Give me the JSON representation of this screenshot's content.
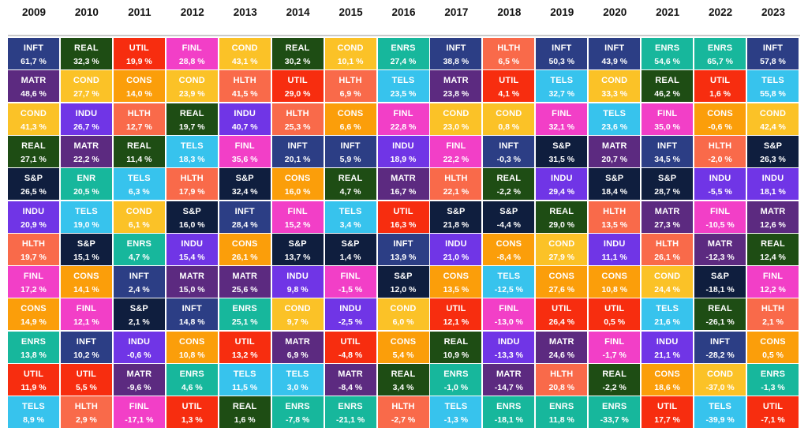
{
  "colors": {
    "INFT": "#2c3e85",
    "REAL": "#1e4d14",
    "UTIL": "#f72d0f",
    "FINL": "#f23fc7",
    "COND": "#fbc227",
    "ENRS": "#17b79c",
    "HLTH": "#f96a4a",
    "TELS": "#37c3ed",
    "MATR": "#5c2a80",
    "CONS": "#fb9e0a",
    "INDU": "#7035e6",
    "S&P": "#0f1e3e",
    "ENR": "#17b79c"
  },
  "chart_data": {
    "type": "table",
    "title": "",
    "years": [
      "2009",
      "2010",
      "2011",
      "2012",
      "2013",
      "2014",
      "2015",
      "2016",
      "2017",
      "2018",
      "2019",
      "2020",
      "2021",
      "2022",
      "2023"
    ],
    "columns": [
      {
        "year": "2009",
        "rows": [
          {
            "sector": "INFT",
            "value": "61,7 %"
          },
          {
            "sector": "MATR",
            "value": "48,6 %"
          },
          {
            "sector": "COND",
            "value": "41,3 %"
          },
          {
            "sector": "REAL",
            "value": "27,1 %"
          },
          {
            "sector": "S&P",
            "value": "26,5 %"
          },
          {
            "sector": "INDU",
            "value": "20,9 %"
          },
          {
            "sector": "HLTH",
            "value": "19,7 %"
          },
          {
            "sector": "FINL",
            "value": "17,2 %"
          },
          {
            "sector": "CONS",
            "value": "14,9 %"
          },
          {
            "sector": "ENRS",
            "value": "13,8 %"
          },
          {
            "sector": "UTIL",
            "value": "11,9 %"
          },
          {
            "sector": "TELS",
            "value": "8,9 %"
          }
        ]
      },
      {
        "year": "2010",
        "rows": [
          {
            "sector": "REAL",
            "value": "32,3 %"
          },
          {
            "sector": "COND",
            "value": "27,7 %"
          },
          {
            "sector": "INDU",
            "value": "26,7 %"
          },
          {
            "sector": "MATR",
            "value": "22,2 %"
          },
          {
            "sector": "ENR",
            "value": "20,5 %"
          },
          {
            "sector": "TELS",
            "value": "19,0 %"
          },
          {
            "sector": "S&P",
            "value": "15,1 %"
          },
          {
            "sector": "CONS",
            "value": "14,1 %"
          },
          {
            "sector": "FINL",
            "value": "12,1 %"
          },
          {
            "sector": "INFT",
            "value": "10,2 %"
          },
          {
            "sector": "UTIL",
            "value": "5,5 %"
          },
          {
            "sector": "HLTH",
            "value": "2,9 %"
          }
        ]
      },
      {
        "year": "2011",
        "rows": [
          {
            "sector": "UTIL",
            "value": "19,9 %"
          },
          {
            "sector": "CONS",
            "value": "14,0 %"
          },
          {
            "sector": "HLTH",
            "value": "12,7 %"
          },
          {
            "sector": "REAL",
            "value": "11,4 %"
          },
          {
            "sector": "TELS",
            "value": "6,3 %"
          },
          {
            "sector": "COND",
            "value": "6,1 %"
          },
          {
            "sector": "ENRS",
            "value": "4,7 %"
          },
          {
            "sector": "INFT",
            "value": "2,4 %"
          },
          {
            "sector": "S&P",
            "value": "2,1 %"
          },
          {
            "sector": "INDU",
            "value": "-0,6 %"
          },
          {
            "sector": "MATR",
            "value": "-9,6 %"
          },
          {
            "sector": "FINL",
            "value": "-17,1 %"
          }
        ]
      },
      {
        "year": "2012",
        "rows": [
          {
            "sector": "FINL",
            "value": "28,8 %"
          },
          {
            "sector": "COND",
            "value": "23,9 %"
          },
          {
            "sector": "REAL",
            "value": "19,7 %"
          },
          {
            "sector": "TELS",
            "value": "18,3 %"
          },
          {
            "sector": "HLTH",
            "value": "17,9 %"
          },
          {
            "sector": "S&P",
            "value": "16,0 %"
          },
          {
            "sector": "INDU",
            "value": "15,4 %"
          },
          {
            "sector": "MATR",
            "value": "15,0 %"
          },
          {
            "sector": "INFT",
            "value": "14,8 %"
          },
          {
            "sector": "CONS",
            "value": "10,8 %"
          },
          {
            "sector": "ENRS",
            "value": "4,6 %"
          },
          {
            "sector": "UTIL",
            "value": "1,3 %"
          }
        ]
      },
      {
        "year": "2013",
        "rows": [
          {
            "sector": "COND",
            "value": "43,1 %"
          },
          {
            "sector": "HLTH",
            "value": "41,5 %"
          },
          {
            "sector": "INDU",
            "value": "40,7 %"
          },
          {
            "sector": "FINL",
            "value": "35,6 %"
          },
          {
            "sector": "S&P",
            "value": "32,4 %"
          },
          {
            "sector": "INFT",
            "value": "28,4 %"
          },
          {
            "sector": "CONS",
            "value": "26,1 %"
          },
          {
            "sector": "MATR",
            "value": "25,6 %"
          },
          {
            "sector": "ENRS",
            "value": "25,1 %"
          },
          {
            "sector": "UTIL",
            "value": "13,2 %"
          },
          {
            "sector": "TELS",
            "value": "11,5 %"
          },
          {
            "sector": "REAL",
            "value": "1,6 %"
          }
        ]
      },
      {
        "year": "2014",
        "rows": [
          {
            "sector": "REAL",
            "value": "30,2 %"
          },
          {
            "sector": "UTIL",
            "value": "29,0 %"
          },
          {
            "sector": "HLTH",
            "value": "25,3 %"
          },
          {
            "sector": "INFT",
            "value": "20,1 %"
          },
          {
            "sector": "CONS",
            "value": "16,0 %"
          },
          {
            "sector": "FINL",
            "value": "15,2 %"
          },
          {
            "sector": "S&P",
            "value": "13,7 %"
          },
          {
            "sector": "INDU",
            "value": "9,8 %"
          },
          {
            "sector": "COND",
            "value": "9,7 %"
          },
          {
            "sector": "MATR",
            "value": "6,9 %"
          },
          {
            "sector": "TELS",
            "value": "3,0 %"
          },
          {
            "sector": "ENRS",
            "value": "-7,8 %"
          }
        ]
      },
      {
        "year": "2015",
        "rows": [
          {
            "sector": "COND",
            "value": "10,1 %"
          },
          {
            "sector": "HLTH",
            "value": "6,9 %"
          },
          {
            "sector": "CONS",
            "value": "6,6 %"
          },
          {
            "sector": "INFT",
            "value": "5,9 %"
          },
          {
            "sector": "REAL",
            "value": "4,7 %"
          },
          {
            "sector": "TELS",
            "value": "3,4 %"
          },
          {
            "sector": "S&P",
            "value": "1,4 %"
          },
          {
            "sector": "FINL",
            "value": "-1,5 %"
          },
          {
            "sector": "INDU",
            "value": "-2,5 %"
          },
          {
            "sector": "UTIL",
            "value": "-4,8 %"
          },
          {
            "sector": "MATR",
            "value": "-8,4 %"
          },
          {
            "sector": "ENRS",
            "value": "-21,1 %"
          }
        ]
      },
      {
        "year": "2016",
        "rows": [
          {
            "sector": "ENRS",
            "value": "27,4 %"
          },
          {
            "sector": "TELS",
            "value": "23,5 %"
          },
          {
            "sector": "FINL",
            "value": "22,8 %"
          },
          {
            "sector": "INDU",
            "value": "18,9 %"
          },
          {
            "sector": "MATR",
            "value": "16,7 %"
          },
          {
            "sector": "UTIL",
            "value": "16,3 %"
          },
          {
            "sector": "INFT",
            "value": "13,9 %"
          },
          {
            "sector": "S&P",
            "value": "12,0 %"
          },
          {
            "sector": "COND",
            "value": "6,0 %"
          },
          {
            "sector": "CONS",
            "value": "5,4 %"
          },
          {
            "sector": "REAL",
            "value": "3,4 %"
          },
          {
            "sector": "HLTH",
            "value": "-2,7 %"
          }
        ]
      },
      {
        "year": "2017",
        "rows": [
          {
            "sector": "INFT",
            "value": "38,8 %"
          },
          {
            "sector": "MATR",
            "value": "23,8 %"
          },
          {
            "sector": "COND",
            "value": "23,0 %"
          },
          {
            "sector": "FINL",
            "value": "22,2 %"
          },
          {
            "sector": "HLTH",
            "value": "22,1 %"
          },
          {
            "sector": "S&P",
            "value": "21,8 %"
          },
          {
            "sector": "INDU",
            "value": "21,0 %"
          },
          {
            "sector": "CONS",
            "value": "13,5 %"
          },
          {
            "sector": "UTIL",
            "value": "12,1 %"
          },
          {
            "sector": "REAL",
            "value": "10,9 %"
          },
          {
            "sector": "ENRS",
            "value": "-1,0 %"
          },
          {
            "sector": "TELS",
            "value": "-1,3 %"
          }
        ]
      },
      {
        "year": "2018",
        "rows": [
          {
            "sector": "HLTH",
            "value": "6,5 %"
          },
          {
            "sector": "UTIL",
            "value": "4,1 %"
          },
          {
            "sector": "COND",
            "value": "0,8 %"
          },
          {
            "sector": "INFT",
            "value": "-0,3 %"
          },
          {
            "sector": "REAL",
            "value": "-2,2 %"
          },
          {
            "sector": "S&P",
            "value": "-4,4 %"
          },
          {
            "sector": "CONS",
            "value": "-8,4 %"
          },
          {
            "sector": "TELS",
            "value": "-12,5 %"
          },
          {
            "sector": "FINL",
            "value": "-13,0 %"
          },
          {
            "sector": "INDU",
            "value": "-13,3 %"
          },
          {
            "sector": "MATR",
            "value": "-14,7 %"
          },
          {
            "sector": "ENRS",
            "value": "-18,1 %"
          }
        ]
      },
      {
        "year": "2019",
        "rows": [
          {
            "sector": "INFT",
            "value": "50,3 %"
          },
          {
            "sector": "TELS",
            "value": "32,7 %"
          },
          {
            "sector": "FINL",
            "value": "32,1 %"
          },
          {
            "sector": "S&P",
            "value": "31,5 %"
          },
          {
            "sector": "INDU",
            "value": "29,4 %"
          },
          {
            "sector": "REAL",
            "value": "29,0 %"
          },
          {
            "sector": "COND",
            "value": "27,9 %"
          },
          {
            "sector": "CONS",
            "value": "27,6 %"
          },
          {
            "sector": "UTIL",
            "value": "26,4 %"
          },
          {
            "sector": "MATR",
            "value": "24,6 %"
          },
          {
            "sector": "HLTH",
            "value": "20,8 %"
          },
          {
            "sector": "ENRS",
            "value": "11,8 %"
          }
        ]
      },
      {
        "year": "2020",
        "rows": [
          {
            "sector": "INFT",
            "value": "43,9 %"
          },
          {
            "sector": "COND",
            "value": "33,3 %"
          },
          {
            "sector": "TELS",
            "value": "23,6 %"
          },
          {
            "sector": "MATR",
            "value": "20,7 %"
          },
          {
            "sector": "S&P",
            "value": "18,4 %"
          },
          {
            "sector": "HLTH",
            "value": "13,5 %"
          },
          {
            "sector": "INDU",
            "value": "11,1 %"
          },
          {
            "sector": "CONS",
            "value": "10,8 %"
          },
          {
            "sector": "UTIL",
            "value": "0,5 %"
          },
          {
            "sector": "FINL",
            "value": "-1,7 %"
          },
          {
            "sector": "REAL",
            "value": "-2,2 %"
          },
          {
            "sector": "ENRS",
            "value": "-33,7 %"
          }
        ]
      },
      {
        "year": "2021",
        "rows": [
          {
            "sector": "ENRS",
            "value": "54,6 %"
          },
          {
            "sector": "REAL",
            "value": "46,2 %"
          },
          {
            "sector": "FINL",
            "value": "35,0 %"
          },
          {
            "sector": "INFT",
            "value": "34,5 %"
          },
          {
            "sector": "S&P",
            "value": "28,7 %"
          },
          {
            "sector": "MATR",
            "value": "27,3 %"
          },
          {
            "sector": "HLTH",
            "value": "26,1 %"
          },
          {
            "sector": "COND",
            "value": "24,4 %"
          },
          {
            "sector": "TELS",
            "value": "21,6 %"
          },
          {
            "sector": "INDU",
            "value": "21,1 %"
          },
          {
            "sector": "CONS",
            "value": "18,6 %"
          },
          {
            "sector": "UTIL",
            "value": "17,7 %"
          }
        ]
      },
      {
        "year": "2022",
        "rows": [
          {
            "sector": "ENRS",
            "value": "65,7 %"
          },
          {
            "sector": "UTIL",
            "value": "1,6 %"
          },
          {
            "sector": "CONS",
            "value": "-0,6 %"
          },
          {
            "sector": "HLTH",
            "value": "-2,0 %"
          },
          {
            "sector": "INDU",
            "value": "-5,5 %"
          },
          {
            "sector": "FINL",
            "value": "-10,5 %"
          },
          {
            "sector": "MATR",
            "value": "-12,3 %"
          },
          {
            "sector": "S&P",
            "value": "-18,1 %"
          },
          {
            "sector": "REAL",
            "value": "-26,1 %"
          },
          {
            "sector": "INFT",
            "value": "-28,2 %"
          },
          {
            "sector": "COND",
            "value": "-37,0 %"
          },
          {
            "sector": "TELS",
            "value": "-39,9 %"
          }
        ]
      },
      {
        "year": "2023",
        "rows": [
          {
            "sector": "INFT",
            "value": "57,8 %"
          },
          {
            "sector": "TELS",
            "value": "55,8 %"
          },
          {
            "sector": "COND",
            "value": "42,4 %"
          },
          {
            "sector": "S&P",
            "value": "26,3 %"
          },
          {
            "sector": "INDU",
            "value": "18,1 %"
          },
          {
            "sector": "MATR",
            "value": "12,6 %"
          },
          {
            "sector": "REAL",
            "value": "12,4 %"
          },
          {
            "sector": "FINL",
            "value": "12,2 %"
          },
          {
            "sector": "HLTH",
            "value": "2,1 %"
          },
          {
            "sector": "CONS",
            "value": "0,5 %"
          },
          {
            "sector": "ENRS",
            "value": "-1,3 %"
          },
          {
            "sector": "UTIL",
            "value": "-7,1 %"
          }
        ]
      }
    ]
  }
}
